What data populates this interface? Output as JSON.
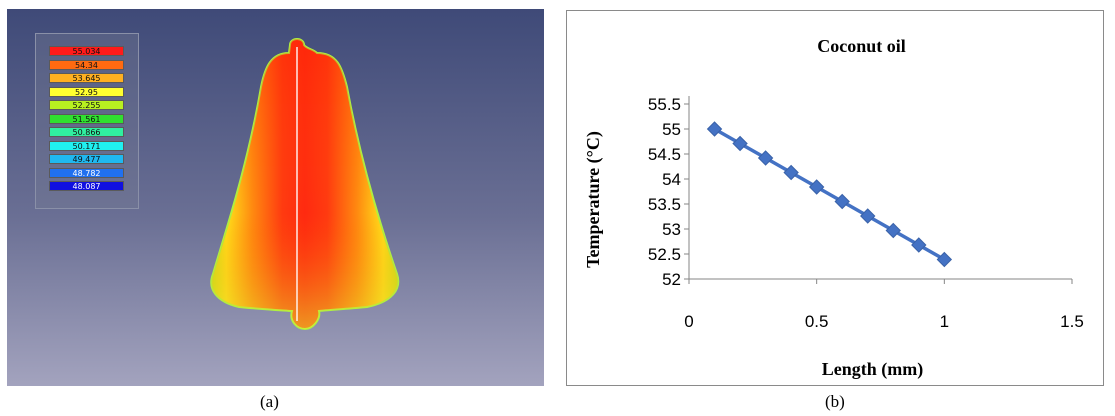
{
  "panel_a": {
    "caption": "(a)",
    "legend": [
      {
        "value": "55.034",
        "color": "#ff1a1a"
      },
      {
        "value": "54.34",
        "color": "#ff6a10"
      },
      {
        "value": "53.645",
        "color": "#ffb020"
      },
      {
        "value": "52.95",
        "color": "#ffff30"
      },
      {
        "value": "52.255",
        "color": "#b8f020"
      },
      {
        "value": "51.561",
        "color": "#30e030"
      },
      {
        "value": "50.866",
        "color": "#30f0a0"
      },
      {
        "value": "50.171",
        "color": "#20f0f0"
      },
      {
        "value": "49.477",
        "color": "#20b8f0"
      },
      {
        "value": "48.782",
        "color": "#2070f0"
      },
      {
        "value": "48.087",
        "color": "#1010e0"
      }
    ]
  },
  "panel_b": {
    "caption": "(b)"
  },
  "chart_data": {
    "type": "line",
    "title": "Coconut oil",
    "xlabel": "Length (mm)",
    "ylabel": "Temperature (°C)",
    "xlim": [
      0,
      1.5
    ],
    "ylim": [
      52,
      55.5
    ],
    "xticks": [
      "0",
      "0.5",
      "1",
      "1.5"
    ],
    "yticks": [
      "52",
      "52.5",
      "53",
      "53.5",
      "54",
      "54.5",
      "55",
      "55.5"
    ],
    "grid": false,
    "series": [
      {
        "color": "#4472c4",
        "x": [
          0.1,
          0.2,
          0.3,
          0.4,
          0.5,
          0.6,
          0.7,
          0.8,
          0.9,
          1.0
        ],
        "y": [
          55.0,
          54.71,
          54.42,
          54.13,
          53.84,
          53.55,
          53.26,
          52.97,
          52.68,
          52.39
        ]
      }
    ]
  }
}
